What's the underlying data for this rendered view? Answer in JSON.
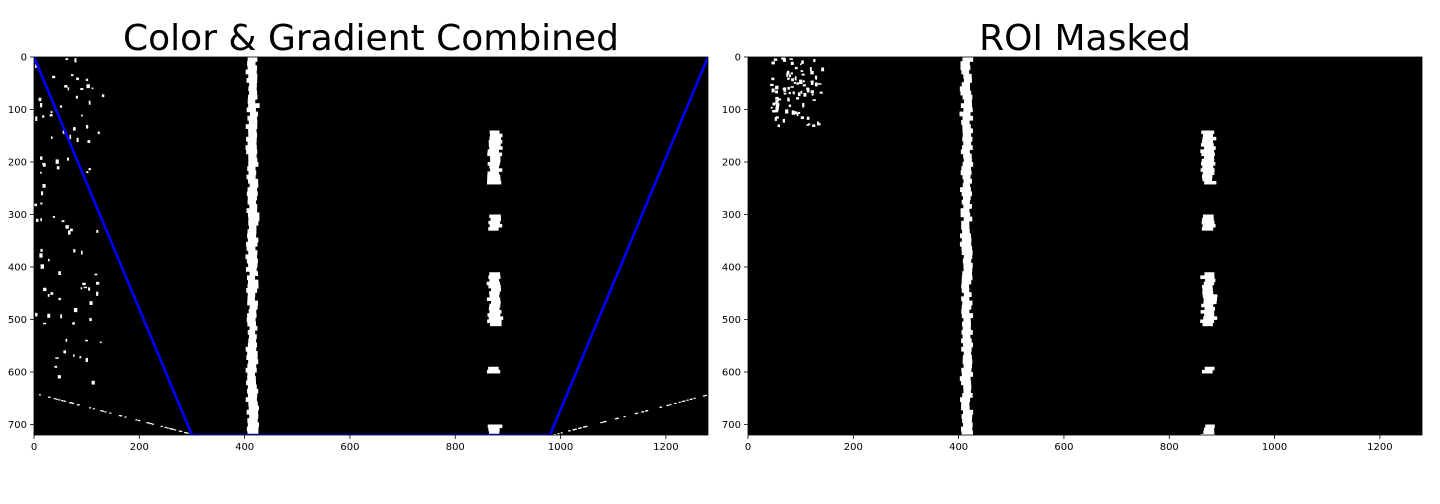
{
  "chart_data": [
    {
      "type": "image",
      "title": "Color & Gradient Combined",
      "xlabel": "",
      "ylabel": "",
      "xlim": [
        0,
        1280
      ],
      "ylim": [
        720,
        0
      ],
      "xticks": [
        0,
        200,
        400,
        600,
        800,
        1000,
        1200
      ],
      "yticks": [
        0,
        100,
        200,
        300,
        400,
        500,
        600,
        700
      ],
      "grid": false,
      "background": "#000000",
      "foreground": "#ffffff",
      "overlay": {
        "name": "",
        "color": "#0000ff",
        "polygon": [
          [
            0,
            0
          ],
          [
            300,
            720
          ],
          [
            980,
            720
          ],
          [
            1280,
            0
          ]
        ]
      },
      "features": [
        {
          "kind": "lane-line",
          "x_center": 415,
          "y_range": [
            0,
            720
          ],
          "shape": "solid"
        },
        {
          "kind": "lane-dashes",
          "x_center": 875,
          "segments": [
            [
              140,
              240
            ],
            [
              300,
              330
            ],
            [
              410,
              510
            ],
            [
              590,
              600
            ],
            [
              700,
              720
            ]
          ]
        },
        {
          "kind": "noise",
          "region": "left-edge",
          "x_range": [
            0,
            130
          ],
          "y_range": [
            0,
            620
          ]
        },
        {
          "kind": "noise",
          "region": "bottom-edges",
          "x_range": [
            0,
            1280
          ],
          "y_range": [
            630,
            720
          ]
        }
      ]
    },
    {
      "type": "image",
      "title": "ROI Masked",
      "xlabel": "",
      "ylabel": "",
      "xlim": [
        0,
        1280
      ],
      "ylim": [
        720,
        0
      ],
      "xticks": [
        0,
        200,
        400,
        600,
        800,
        1000,
        1200
      ],
      "yticks": [
        0,
        100,
        200,
        300,
        400,
        500,
        600,
        700
      ],
      "grid": false,
      "background": "#000000",
      "foreground": "#ffffff",
      "features": [
        {
          "kind": "lane-line",
          "x_center": 415,
          "y_range": [
            0,
            720
          ],
          "shape": "solid"
        },
        {
          "kind": "lane-dashes",
          "x_center": 875,
          "segments": [
            [
              140,
              240
            ],
            [
              300,
              330
            ],
            [
              410,
              510
            ],
            [
              590,
              600
            ],
            [
              700,
              720
            ]
          ]
        },
        {
          "kind": "noise",
          "region": "top-left",
          "x_range": [
            40,
            140
          ],
          "y_range": [
            0,
            130
          ]
        }
      ]
    }
  ]
}
